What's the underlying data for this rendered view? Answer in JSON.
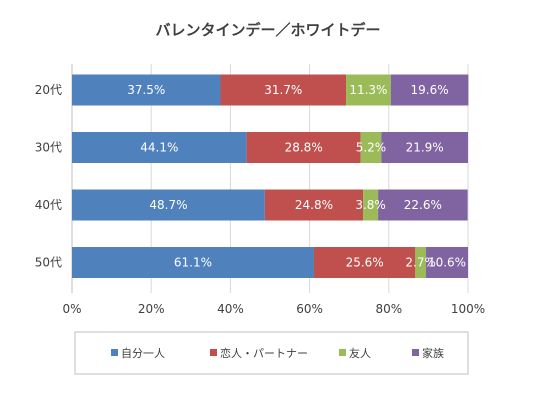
{
  "chart_data": {
    "type": "bar",
    "orientation": "horizontal",
    "stacked": "percent",
    "title": "バレンタインデー／ホワイトデー",
    "categories": [
      "20代",
      "30代",
      "40代",
      "50代"
    ],
    "series": [
      {
        "name": "自分一人",
        "color": "#4f81bd",
        "values": [
          37.5,
          44.1,
          48.7,
          61.1
        ],
        "labels": [
          "37.5%",
          "44.1%",
          "48.7%",
          "61.1%"
        ]
      },
      {
        "name": "恋人・パートナー",
        "color": "#c0504d",
        "values": [
          31.7,
          28.8,
          24.8,
          25.6
        ],
        "labels": [
          "31.7%",
          "28.8%",
          "24.8%",
          "25.6%"
        ]
      },
      {
        "name": "友人",
        "color": "#9bbb59",
        "values": [
          11.3,
          5.2,
          3.8,
          2.7
        ],
        "labels": [
          "11.3%",
          "5.2%",
          "3.8%",
          "2.7%"
        ]
      },
      {
        "name": "家族",
        "color": "#8064a2",
        "values": [
          19.6,
          21.9,
          22.6,
          10.6
        ],
        "labels": [
          "19.6%",
          "21.9%",
          "22.6%",
          "10.6%"
        ]
      }
    ],
    "xlim": [
      0,
      100
    ],
    "xticks": [
      "0%",
      "20%",
      "40%",
      "60%",
      "80%",
      "100%"
    ],
    "grid": true,
    "legend_position": "bottom"
  }
}
